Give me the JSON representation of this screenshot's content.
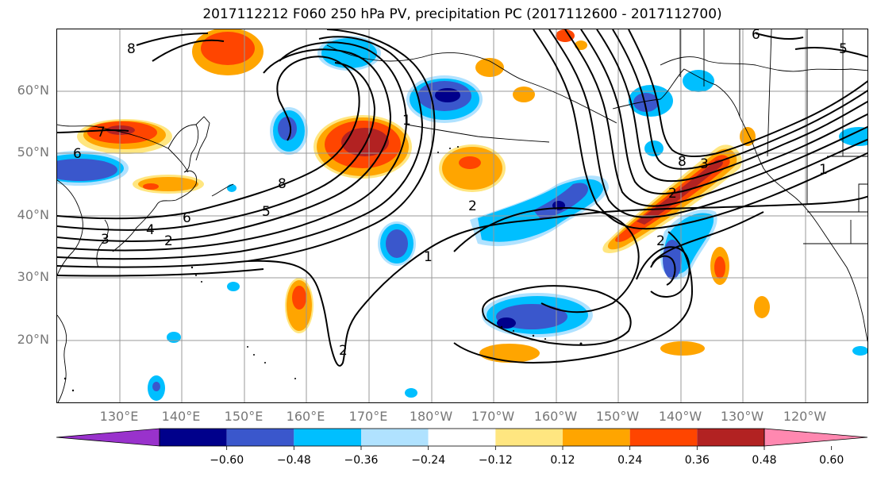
{
  "title": "2017112212 F060 250 hPa PV, precipitation PC (2017112600 - 2017112700)",
  "lat_labels": [
    "60°N",
    "50°N",
    "40°N",
    "30°N",
    "20°N"
  ],
  "lon_labels": [
    "130°E",
    "140°E",
    "150°E",
    "160°E",
    "170°E",
    "180°W",
    "170°W",
    "160°W",
    "150°W",
    "140°W",
    "130°W",
    "120°W"
  ],
  "colorbar": {
    "tick_labels": [
      "−0.60",
      "−0.48",
      "−0.36",
      "−0.24",
      "−0.12",
      "0.12",
      "0.24",
      "0.36",
      "0.48",
      "0.60"
    ],
    "colors": [
      "#9932cc",
      "#00008b",
      "#3a57cc",
      "#00bfff",
      "#b0e2ff",
      "#ffffff",
      "#ffe680",
      "#ffa500",
      "#ff4500",
      "#b22222",
      "#ff88b0"
    ]
  },
  "contour_labels": [
    "8",
    "8",
    "6",
    "7",
    "3",
    "4",
    "2",
    "6",
    "8",
    "5",
    "2",
    "1",
    "1",
    "2",
    "2",
    "3",
    "2",
    "1",
    "6",
    "5"
  ]
}
